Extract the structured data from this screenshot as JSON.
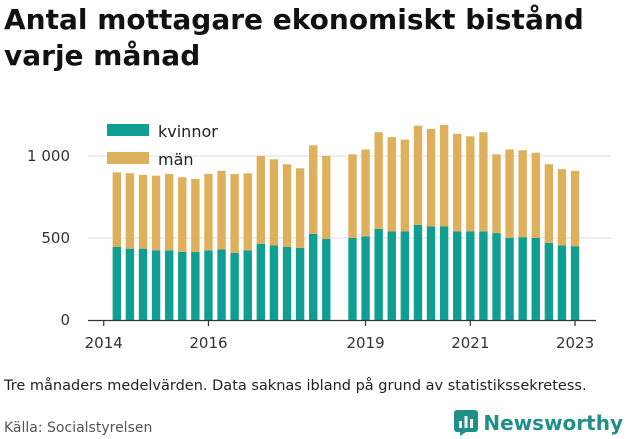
{
  "title": "Antal mottagare ekonomiskt bistånd varje månad",
  "caption": "Tre månaders medelvärden. Data saknas ibland på grund av statistikssekretess.",
  "source": "Källa: Socialstyrelsen",
  "brand": {
    "name": "Newsworthy",
    "icon": "bar-chart-icon",
    "color": "#1f8f88"
  },
  "chart_data": {
    "type": "bar",
    "stacked": true,
    "title": "Antal mottagare ekonomiskt bistånd varje månad",
    "xlabel": "",
    "ylabel": "",
    "ylim": [
      0,
      1250
    ],
    "yticks": [
      0,
      500,
      1000
    ],
    "ytick_labels": [
      "0",
      "500",
      "1 000"
    ],
    "x_range": [
      2013.7,
      2023.4
    ],
    "xticks": [
      2014,
      2016,
      2019,
      2021,
      2023
    ],
    "xtick_labels": [
      "2014",
      "2016",
      "2019",
      "2021",
      "2023"
    ],
    "grid": true,
    "legend": "top-left",
    "x": [
      2014.25,
      2014.5,
      2014.75,
      2015.0,
      2015.25,
      2015.5,
      2015.75,
      2016.0,
      2016.25,
      2016.5,
      2016.75,
      2017.0,
      2017.25,
      2017.5,
      2017.75,
      2018.0,
      2018.25,
      2018.75,
      2019.0,
      2019.25,
      2019.5,
      2019.75,
      2020.0,
      2020.25,
      2020.5,
      2020.75,
      2021.0,
      2021.25,
      2021.5,
      2021.75,
      2022.0,
      2022.25,
      2022.5,
      2022.75,
      2023.0
    ],
    "series": [
      {
        "name": "kvinnor",
        "color": "#0f9e91",
        "values": [
          445,
          435,
          435,
          425,
          425,
          415,
          415,
          425,
          430,
          410,
          425,
          465,
          455,
          445,
          440,
          525,
          495,
          500,
          510,
          555,
          540,
          540,
          580,
          570,
          570,
          540,
          540,
          540,
          530,
          500,
          505,
          500,
          470,
          455,
          450
        ]
      },
      {
        "name": "män",
        "color": "#dfb05c",
        "values": [
          455,
          460,
          450,
          455,
          465,
          455,
          445,
          465,
          480,
          480,
          470,
          535,
          525,
          505,
          485,
          540,
          505,
          510,
          530,
          590,
          575,
          560,
          605,
          595,
          620,
          595,
          580,
          605,
          480,
          540,
          530,
          520,
          480,
          465,
          460
        ]
      }
    ]
  }
}
